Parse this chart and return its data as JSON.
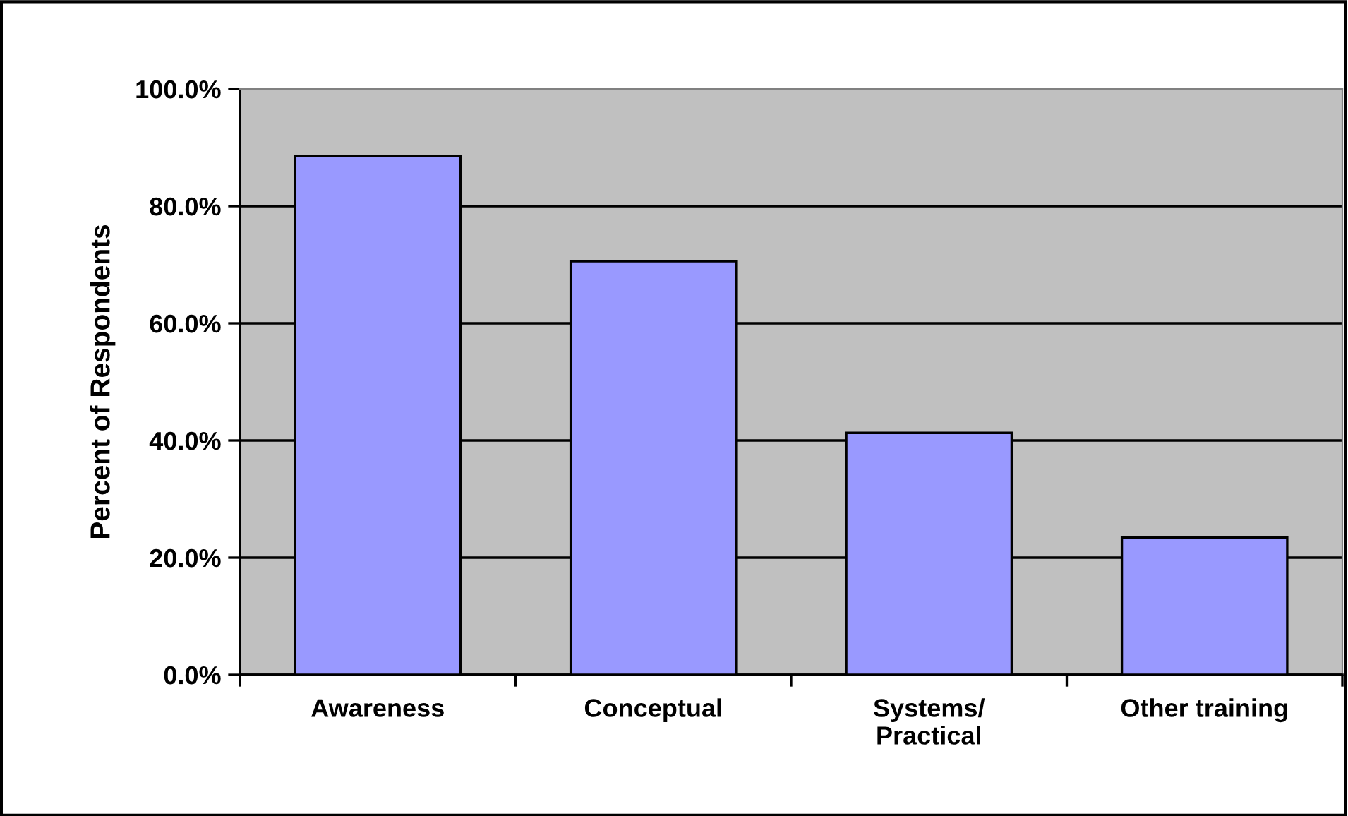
{
  "chart_data": {
    "type": "bar",
    "ylabel": "Percent of Respondents",
    "categories": [
      "Awareness",
      "Conceptual",
      "Systems/\nPractical",
      "Other training"
    ],
    "values": [
      88.5,
      70.6,
      41.3,
      23.4
    ],
    "color": "#9999ff",
    "ylim": [
      0,
      100
    ],
    "yticks": [
      {
        "value": 0,
        "label": "0.0%"
      },
      {
        "value": 20,
        "label": "20.0%"
      },
      {
        "value": 40,
        "label": "40.0%"
      },
      {
        "value": 60,
        "label": "60.0%"
      },
      {
        "value": 80,
        "label": "80.0%"
      },
      {
        "value": 100,
        "label": "100.0%"
      }
    ],
    "grid": "y"
  }
}
